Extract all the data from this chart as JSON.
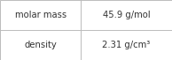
{
  "rows": [
    [
      "molar mass",
      "45.9 g/mol"
    ],
    [
      "density",
      "2.31 g/cm³"
    ]
  ],
  "bg_color": "#ffffff",
  "border_color": "#bbbbbb",
  "text_color": "#333333",
  "font_size": 7.2,
  "col_split": 0.47,
  "figsize": [
    1.94,
    0.68
  ],
  "dpi": 100
}
